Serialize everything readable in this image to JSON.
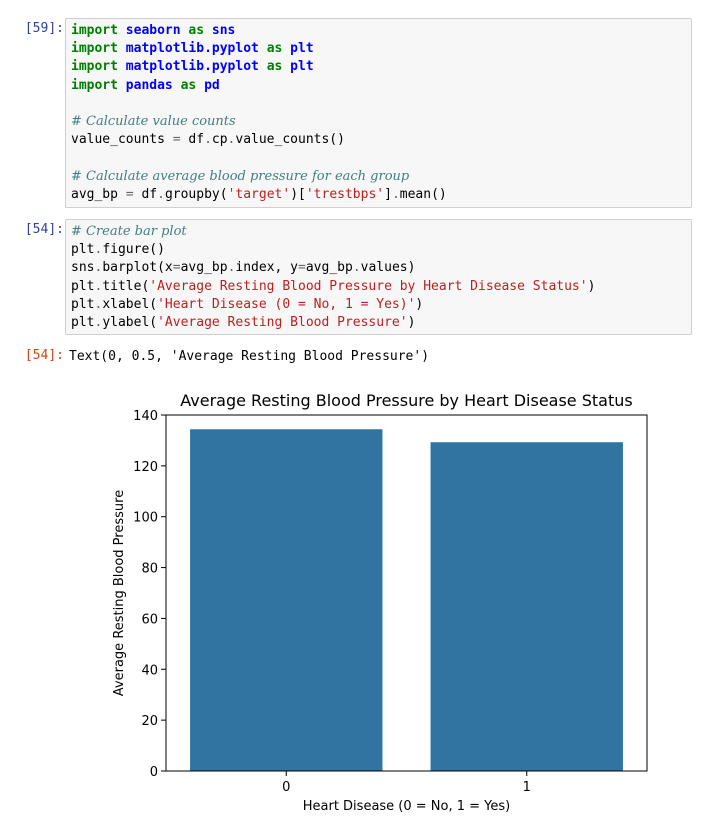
{
  "cells": [
    {
      "prompt": "[59]:",
      "lines": [
        [
          {
            "t": "import",
            "c": "kw"
          },
          {
            "t": " "
          },
          {
            "t": "seaborn",
            "c": "mod"
          },
          {
            "t": " "
          },
          {
            "t": "as",
            "c": "kw"
          },
          {
            "t": " "
          },
          {
            "t": "sns",
            "c": "mod"
          }
        ],
        [
          {
            "t": "import",
            "c": "kw"
          },
          {
            "t": " "
          },
          {
            "t": "matplotlib.pyplot",
            "c": "mod"
          },
          {
            "t": " "
          },
          {
            "t": "as",
            "c": "kw"
          },
          {
            "t": " "
          },
          {
            "t": "plt",
            "c": "mod"
          }
        ],
        [
          {
            "t": "import",
            "c": "kw"
          },
          {
            "t": " "
          },
          {
            "t": "matplotlib.pyplot",
            "c": "mod"
          },
          {
            "t": " "
          },
          {
            "t": "as",
            "c": "kw"
          },
          {
            "t": " "
          },
          {
            "t": "plt",
            "c": "mod"
          }
        ],
        [
          {
            "t": "import",
            "c": "kw"
          },
          {
            "t": " "
          },
          {
            "t": "pandas",
            "c": "mod"
          },
          {
            "t": " "
          },
          {
            "t": "as",
            "c": "kw"
          },
          {
            "t": " "
          },
          {
            "t": "pd",
            "c": "mod"
          }
        ],
        [],
        [
          {
            "t": "# Calculate value counts",
            "c": "cmt"
          }
        ],
        [
          {
            "t": "value_counts "
          },
          {
            "t": "=",
            "c": "op"
          },
          {
            "t": " df"
          },
          {
            "t": ".",
            "c": "op"
          },
          {
            "t": "cp"
          },
          {
            "t": ".",
            "c": "op"
          },
          {
            "t": "value_counts()"
          }
        ],
        [],
        [
          {
            "t": "# Calculate average blood pressure for each group",
            "c": "cmt"
          }
        ],
        [
          {
            "t": "avg_bp "
          },
          {
            "t": "=",
            "c": "op"
          },
          {
            "t": " df"
          },
          {
            "t": ".",
            "c": "op"
          },
          {
            "t": "groupby("
          },
          {
            "t": "'target'",
            "c": "str"
          },
          {
            "t": ")["
          },
          {
            "t": "'trestbps'",
            "c": "str"
          },
          {
            "t": "]"
          },
          {
            "t": ".",
            "c": "op"
          },
          {
            "t": "mean()"
          }
        ]
      ]
    },
    {
      "prompt": "[54]:",
      "lines": [
        [
          {
            "t": "# Create bar plot",
            "c": "cmt"
          }
        ],
        [
          {
            "t": "plt"
          },
          {
            "t": ".",
            "c": "op"
          },
          {
            "t": "figure()"
          }
        ],
        [
          {
            "t": "sns"
          },
          {
            "t": ".",
            "c": "op"
          },
          {
            "t": "barplot(x"
          },
          {
            "t": "=",
            "c": "op"
          },
          {
            "t": "avg_bp"
          },
          {
            "t": ".",
            "c": "op"
          },
          {
            "t": "index, y"
          },
          {
            "t": "=",
            "c": "op"
          },
          {
            "t": "avg_bp"
          },
          {
            "t": ".",
            "c": "op"
          },
          {
            "t": "values)"
          }
        ],
        [
          {
            "t": "plt"
          },
          {
            "t": ".",
            "c": "op"
          },
          {
            "t": "title("
          },
          {
            "t": "'Average Resting Blood Pressure by Heart Disease Status'",
            "c": "str"
          },
          {
            "t": ")"
          }
        ],
        [
          {
            "t": "plt"
          },
          {
            "t": ".",
            "c": "op"
          },
          {
            "t": "xlabel("
          },
          {
            "t": "'Heart Disease (0 = No, 1 = Yes)'",
            "c": "str"
          },
          {
            "t": ")"
          }
        ],
        [
          {
            "t": "plt"
          },
          {
            "t": ".",
            "c": "op"
          },
          {
            "t": "ylabel("
          },
          {
            "t": "'Average Resting Blood Pressure'",
            "c": "str"
          },
          {
            "t": ")"
          }
        ]
      ]
    }
  ],
  "output": {
    "prompt": "[54]:",
    "text": "Text(0, 0.5, 'Average Resting Blood Pressure')"
  },
  "chart_data": {
    "type": "bar",
    "title": "Average Resting Blood Pressure by Heart Disease Status",
    "xlabel": "Heart Disease (0 = No, 1 = Yes)",
    "ylabel": "Average Resting Blood Pressure",
    "categories": [
      "0",
      "1"
    ],
    "values": [
      134.4,
      129.3
    ],
    "ylim": [
      0,
      140
    ],
    "yticks": [
      0,
      20,
      40,
      60,
      80,
      100,
      120,
      140
    ],
    "bar_color": "#3274a1",
    "grid": false
  }
}
